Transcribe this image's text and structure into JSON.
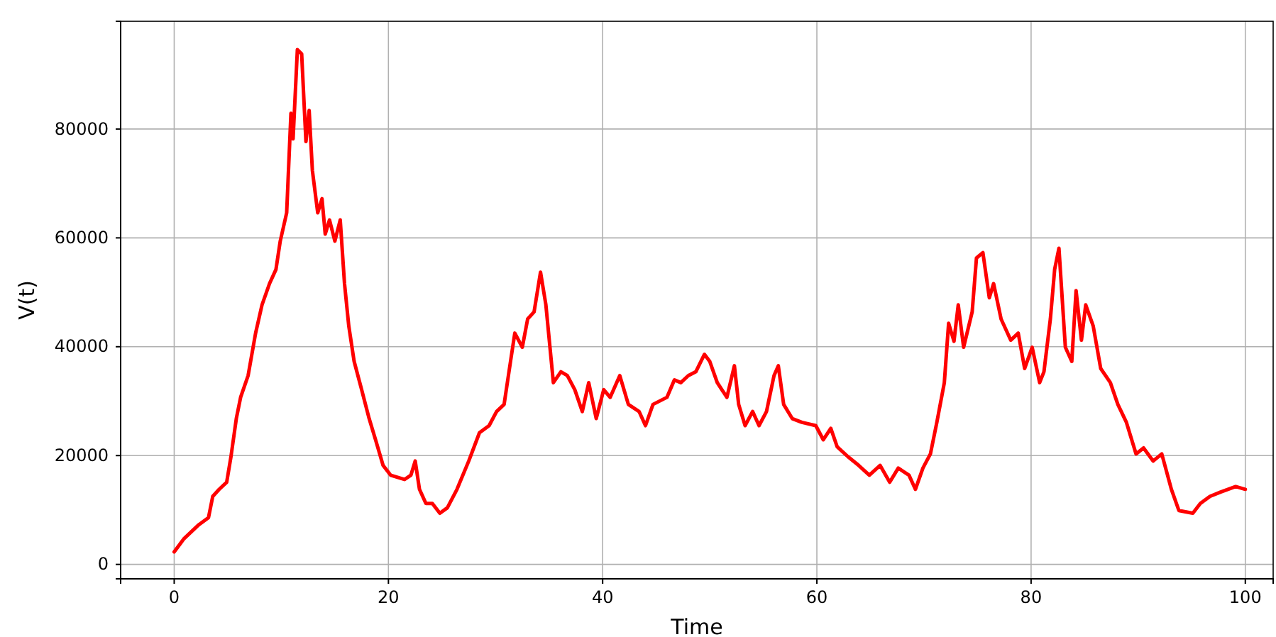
{
  "chart_data": {
    "type": "line",
    "xlabel": "Time",
    "ylabel": "V(t)",
    "xlim": [
      -5,
      102.6
    ],
    "ylim": [
      -2650,
      99800
    ],
    "xticks": [
      0,
      20,
      40,
      60,
      80,
      100
    ],
    "yticks": [
      0,
      20000,
      40000,
      60000,
      80000
    ],
    "grid": true,
    "marker": "none",
    "line_style": "solid",
    "series": [
      {
        "color": "#ff0000",
        "x": [
          0,
          0.9,
          2.3,
          3.2,
          3.6,
          4.2,
          4.9,
          5.3,
          5.8,
          6.2,
          6.9,
          7.6,
          8.2,
          8.9,
          9.5,
          9.9,
          10.5,
          10.9,
          11.1,
          11.5,
          11.9,
          12.3,
          12.6,
          12.9,
          13.4,
          13.8,
          14.1,
          14.5,
          15.0,
          15.5,
          15.9,
          16.3,
          16.8,
          17.5,
          18.2,
          18.8,
          19.5,
          20.2,
          21.5,
          22.1,
          22.5,
          22.9,
          23.5,
          24.1,
          24.8,
          25.5,
          26.4,
          27.5,
          28.5,
          29.4,
          30.1,
          30.8,
          31.4,
          31.8,
          32.5,
          33.0,
          33.6,
          34.2,
          34.7,
          35.4,
          36.1,
          36.7,
          37.4,
          38.1,
          38.7,
          39.4,
          40.1,
          40.7,
          41.6,
          42.4,
          43.4,
          44.0,
          44.7,
          46.0,
          46.7,
          47.3,
          48.0,
          48.7,
          49.5,
          50.0,
          50.7,
          51.6,
          52.3,
          52.7,
          53.3,
          54.0,
          54.6,
          55.3,
          56.0,
          56.4,
          56.9,
          57.7,
          58.6,
          59.9,
          60.6,
          61.3,
          61.9,
          62.9,
          63.9,
          64.9,
          65.9,
          66.8,
          67.6,
          68.6,
          69.2,
          69.9,
          70.6,
          71.2,
          71.9,
          72.3,
          72.8,
          73.2,
          73.7,
          74.5,
          74.9,
          75.5,
          76.1,
          76.5,
          77.2,
          78.1,
          78.8,
          79.4,
          80.1,
          80.8,
          81.2,
          81.8,
          82.2,
          82.6,
          83.2,
          83.8,
          84.2,
          84.7,
          85.1,
          85.8,
          86.5,
          87.4,
          88.1,
          88.9,
          89.8,
          90.5,
          91.4,
          92.2,
          93.1,
          93.8,
          95.1,
          95.8,
          96.7,
          97.7,
          99.1,
          100
        ],
        "values": [
          2300,
          4700,
          7300,
          8600,
          12500,
          13800,
          15100,
          19800,
          26800,
          30700,
          34700,
          42500,
          47700,
          51600,
          54200,
          59400,
          64600,
          82900,
          78200,
          94600,
          93800,
          77700,
          83400,
          72400,
          64600,
          67200,
          60700,
          63300,
          59400,
          63300,
          51600,
          43800,
          37300,
          32100,
          26800,
          22900,
          18200,
          16400,
          15600,
          16400,
          19000,
          13800,
          11200,
          11200,
          9400,
          10400,
          13800,
          19000,
          24200,
          25500,
          28100,
          29400,
          37300,
          42500,
          39900,
          45100,
          46400,
          53700,
          47700,
          33400,
          35400,
          34700,
          32100,
          28100,
          33400,
          26800,
          32100,
          30700,
          34700,
          29400,
          28100,
          25500,
          29400,
          30700,
          33900,
          33400,
          34700,
          35400,
          38600,
          37300,
          33400,
          30700,
          36500,
          29400,
          25500,
          28100,
          25500,
          28100,
          34700,
          36500,
          29400,
          26800,
          26100,
          25500,
          22900,
          25000,
          21600,
          19800,
          18200,
          16400,
          18200,
          15100,
          17700,
          16400,
          13800,
          17700,
          20300,
          26100,
          33400,
          44300,
          41000,
          47700,
          39900,
          46400,
          56300,
          57300,
          49000,
          51600,
          45100,
          41200,
          42500,
          36000,
          39900,
          33400,
          35400,
          45100,
          54200,
          58100,
          39900,
          37300,
          50300,
          41200,
          47700,
          43800,
          36000,
          33400,
          29400,
          26100,
          20300,
          21400,
          19000,
          20300,
          13800,
          9900,
          9400,
          11200,
          12500,
          13300,
          14300,
          13800
        ]
      }
    ]
  }
}
